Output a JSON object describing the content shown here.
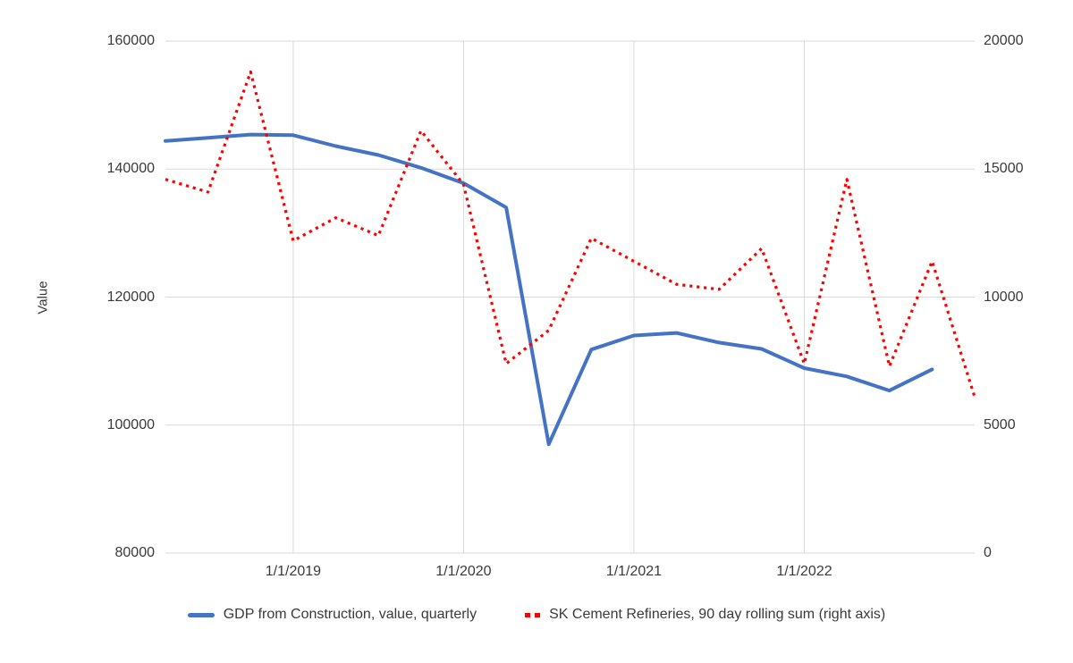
{
  "chart_data": {
    "type": "line",
    "title": "",
    "xlabel": "",
    "ylabel": "Value",
    "grid": true,
    "legend_position": "bottom",
    "x_range": [
      2018.25,
      2023.0
    ],
    "x_tick_values": [
      2019,
      2020,
      2021,
      2022
    ],
    "x_tick_labels": [
      "1/1/2019",
      "1/1/2020",
      "1/1/2021",
      "1/1/2022"
    ],
    "left_axis": {
      "range": [
        80000,
        160000
      ],
      "ticks": [
        160000,
        140000,
        120000,
        100000,
        80000
      ],
      "tick_labels": [
        "160000",
        "140000",
        "120000",
        "100000",
        "80000"
      ]
    },
    "right_axis": {
      "range": [
        0,
        20000
      ],
      "ticks": [
        20000,
        15000,
        10000,
        5000,
        0
      ],
      "tick_labels": [
        "20000",
        "15000",
        "10000",
        "5000",
        "0"
      ]
    },
    "series": [
      {
        "name": "GDP from Construction, value, quarterly",
        "axis": "left",
        "color": "#4472C4",
        "style": "solid",
        "x": [
          2018.25,
          2018.5,
          2018.75,
          2019.0,
          2019.25,
          2019.5,
          2019.75,
          2020.0,
          2020.25,
          2020.5,
          2020.75,
          2021.0,
          2021.25,
          2021.5,
          2021.75,
          2022.0,
          2022.25,
          2022.5,
          2022.75
        ],
        "values": [
          144400,
          144900,
          145400,
          145300,
          143600,
          142200,
          140200,
          137800,
          134000,
          97000,
          111800,
          114000,
          114400,
          112900,
          111900,
          108900,
          107600,
          105400,
          108700
        ]
      },
      {
        "name": "SK Cement Refineries, 90 day rolling sum (right axis)",
        "axis": "right",
        "color": "#FF0000",
        "style": "dotted",
        "x": [
          2018.25,
          2018.5,
          2018.75,
          2019.0,
          2019.25,
          2019.5,
          2019.75,
          2020.0,
          2020.25,
          2020.5,
          2020.75,
          2021.0,
          2021.25,
          2021.5,
          2021.75,
          2022.0,
          2022.25,
          2022.5,
          2022.75,
          2023.0
        ],
        "values": [
          14600,
          14100,
          18800,
          12200,
          13100,
          12400,
          16500,
          14400,
          7400,
          8700,
          12300,
          11400,
          10500,
          10300,
          11900,
          7400,
          14600,
          7300,
          11400,
          6100
        ]
      }
    ]
  }
}
